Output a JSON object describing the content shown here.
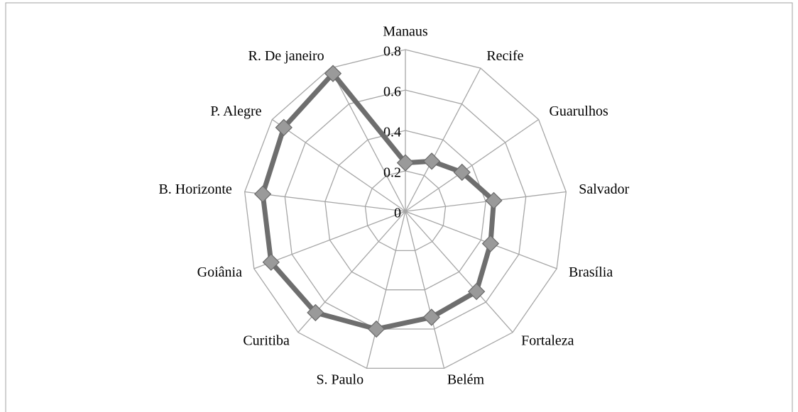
{
  "chart_data": {
    "type": "radar",
    "categories": [
      "Manaus",
      "Recife",
      "Guarulhos",
      "Salvador",
      "Brasília",
      "Fortaleza",
      "Belém",
      "S. Paulo",
      "Curitiba",
      "Goiânia",
      "B. Horizonte",
      "P. Alegre",
      "R. De janeiro"
    ],
    "values": [
      0.24,
      0.28,
      0.34,
      0.44,
      0.45,
      0.53,
      0.54,
      0.6,
      0.67,
      0.71,
      0.71,
      0.73,
      0.77
    ],
    "color": "#6e6e6e",
    "rlim": [
      0,
      0.8
    ],
    "rticks": [
      0,
      0.2,
      0.4,
      0.6,
      0.8
    ],
    "grid": true
  }
}
